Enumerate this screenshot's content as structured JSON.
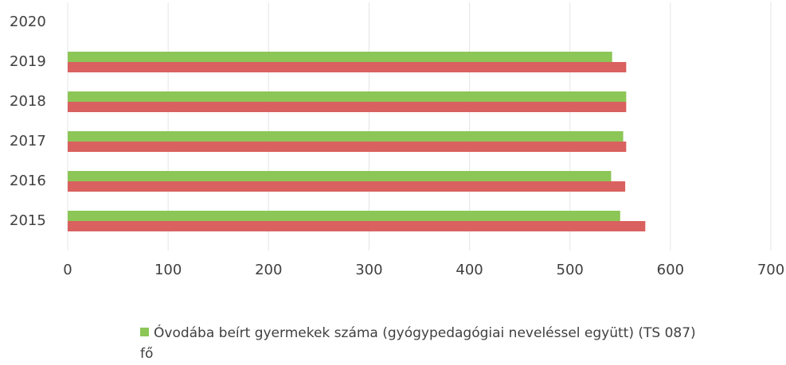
{
  "chart_data": {
    "type": "hbar",
    "categories": [
      "2020",
      "2019",
      "2018",
      "2017",
      "2016",
      "2015"
    ],
    "series": [
      {
        "name": "Óvodába beírt gyermekek száma (gyógypedagógiai neveléssel együtt) (TS 087) fő",
        "color": "#8cc657",
        "values": [
          null,
          542,
          556,
          553,
          541,
          550
        ]
      },
      {
        "color": "#d9615f",
        "values": [
          null,
          556,
          556,
          556,
          555,
          575
        ]
      }
    ],
    "xlim": [
      0,
      700
    ],
    "xticks": [
      0,
      100,
      200,
      300,
      400,
      500,
      600,
      700
    ],
    "grid": true,
    "legend": "bottom"
  }
}
